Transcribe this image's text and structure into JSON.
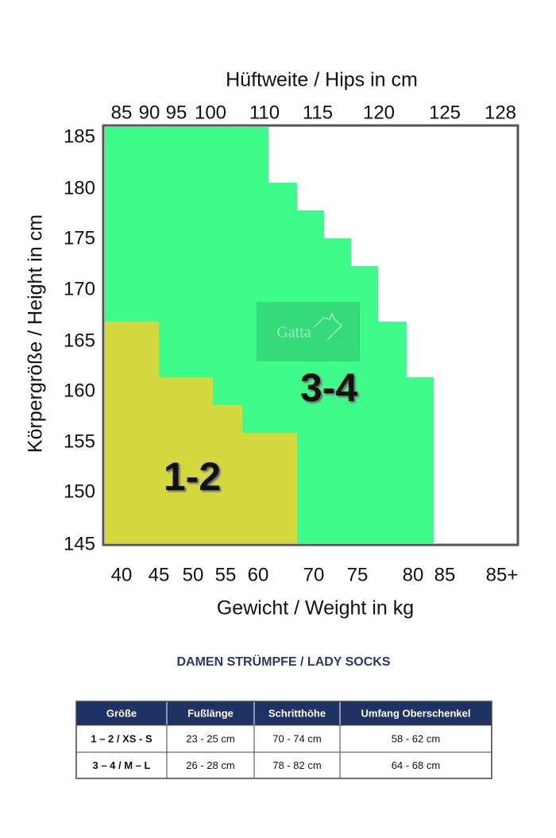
{
  "chart": {
    "top_axis_title": "Hüftweite / Hips in cm",
    "top_labels": [
      "85",
      "90",
      "95",
      "100",
      "110",
      "115",
      "120",
      "125",
      "128"
    ],
    "left_axis_title": "Körpergröße / Height in cm",
    "left_labels": [
      "185",
      "180",
      "175",
      "170",
      "165",
      "160",
      "155",
      "150",
      "145"
    ],
    "bottom_labels": [
      "40",
      "45",
      "50",
      "55",
      "60",
      "70",
      "75",
      "80",
      "85",
      "85+"
    ],
    "bottom_axis_title": "Gewicht / Weight in kg",
    "regions": [
      "1-2",
      "3-4"
    ],
    "logo": "Gatta"
  },
  "table": {
    "title": "DAMEN STRÜMPFE / LADY SOCKS",
    "header": [
      "Größe",
      "Fußlänge",
      "Schritthöhe",
      "Umfang Oberschenkel"
    ],
    "rows": [
      [
        "1 – 2 / XS - S",
        "23 - 25 cm",
        "70 - 74 cm",
        "58 - 62 cm"
      ],
      [
        "3 – 4 / M – L",
        "26 - 28 cm",
        "78 - 82 cm",
        "64 - 68 cm"
      ]
    ]
  }
}
